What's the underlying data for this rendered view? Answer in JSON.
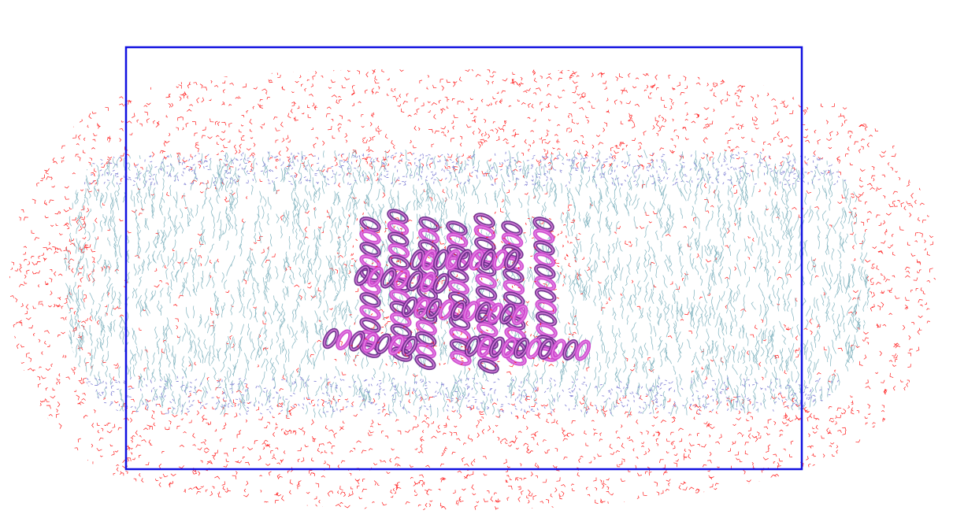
{
  "scene": {
    "background_color": "#ffffff",
    "periodic_box_color": "#1010e0",
    "water_color": "#ff1a1a",
    "lipid_color": "#7fb2bf",
    "lipid_headgroup_color": "#8a8ad8",
    "protein_color": "#cc44cc",
    "protein_dark_color": "#6a2a8a",
    "protein_light_color": "#e88ae8",
    "objects": [
      "water-shell",
      "lipid-bilayer",
      "protein-helices",
      "periodic-box"
    ]
  }
}
